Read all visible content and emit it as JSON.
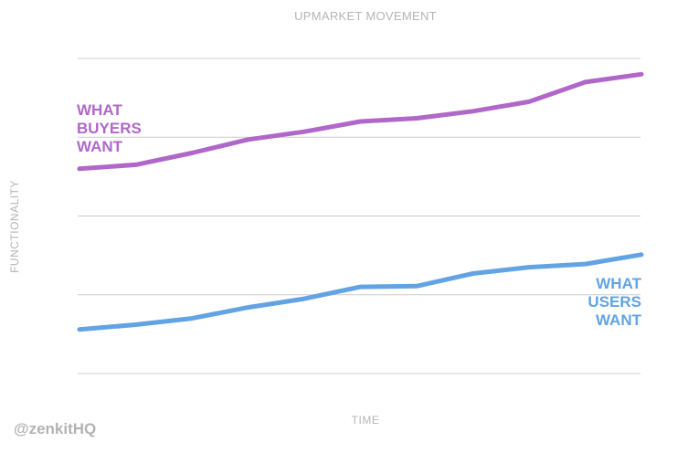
{
  "chart_data": {
    "type": "line",
    "title": "UPMARKET MOVEMENT",
    "xlabel": "TIME",
    "ylabel": "FUNCTIONALITY",
    "xlim": [
      0,
      10
    ],
    "ylim": [
      0,
      4
    ],
    "grid": true,
    "x": [
      0,
      1,
      2,
      3,
      4,
      5,
      6,
      7,
      8,
      9,
      10
    ],
    "series": [
      {
        "name": "WHAT BUYERS WANT",
        "label_lines": [
          "WHAT",
          "BUYERS",
          "WANT"
        ],
        "color": "#b067c9",
        "values": [
          2.6,
          2.65,
          2.8,
          2.97,
          3.07,
          3.2,
          3.24,
          3.33,
          3.45,
          3.7,
          3.8
        ]
      },
      {
        "name": "WHAT USERS WANT",
        "label_lines": [
          "WHAT",
          "USERS",
          "WANT"
        ],
        "color": "#62a3e3",
        "values": [
          0.56,
          0.62,
          0.7,
          0.84,
          0.95,
          1.1,
          1.11,
          1.27,
          1.35,
          1.39,
          1.51
        ]
      }
    ]
  },
  "credit": "@zenkitHQ",
  "colors": {
    "grid": "#cccccc",
    "muted_text": "#b5b5b5"
  }
}
